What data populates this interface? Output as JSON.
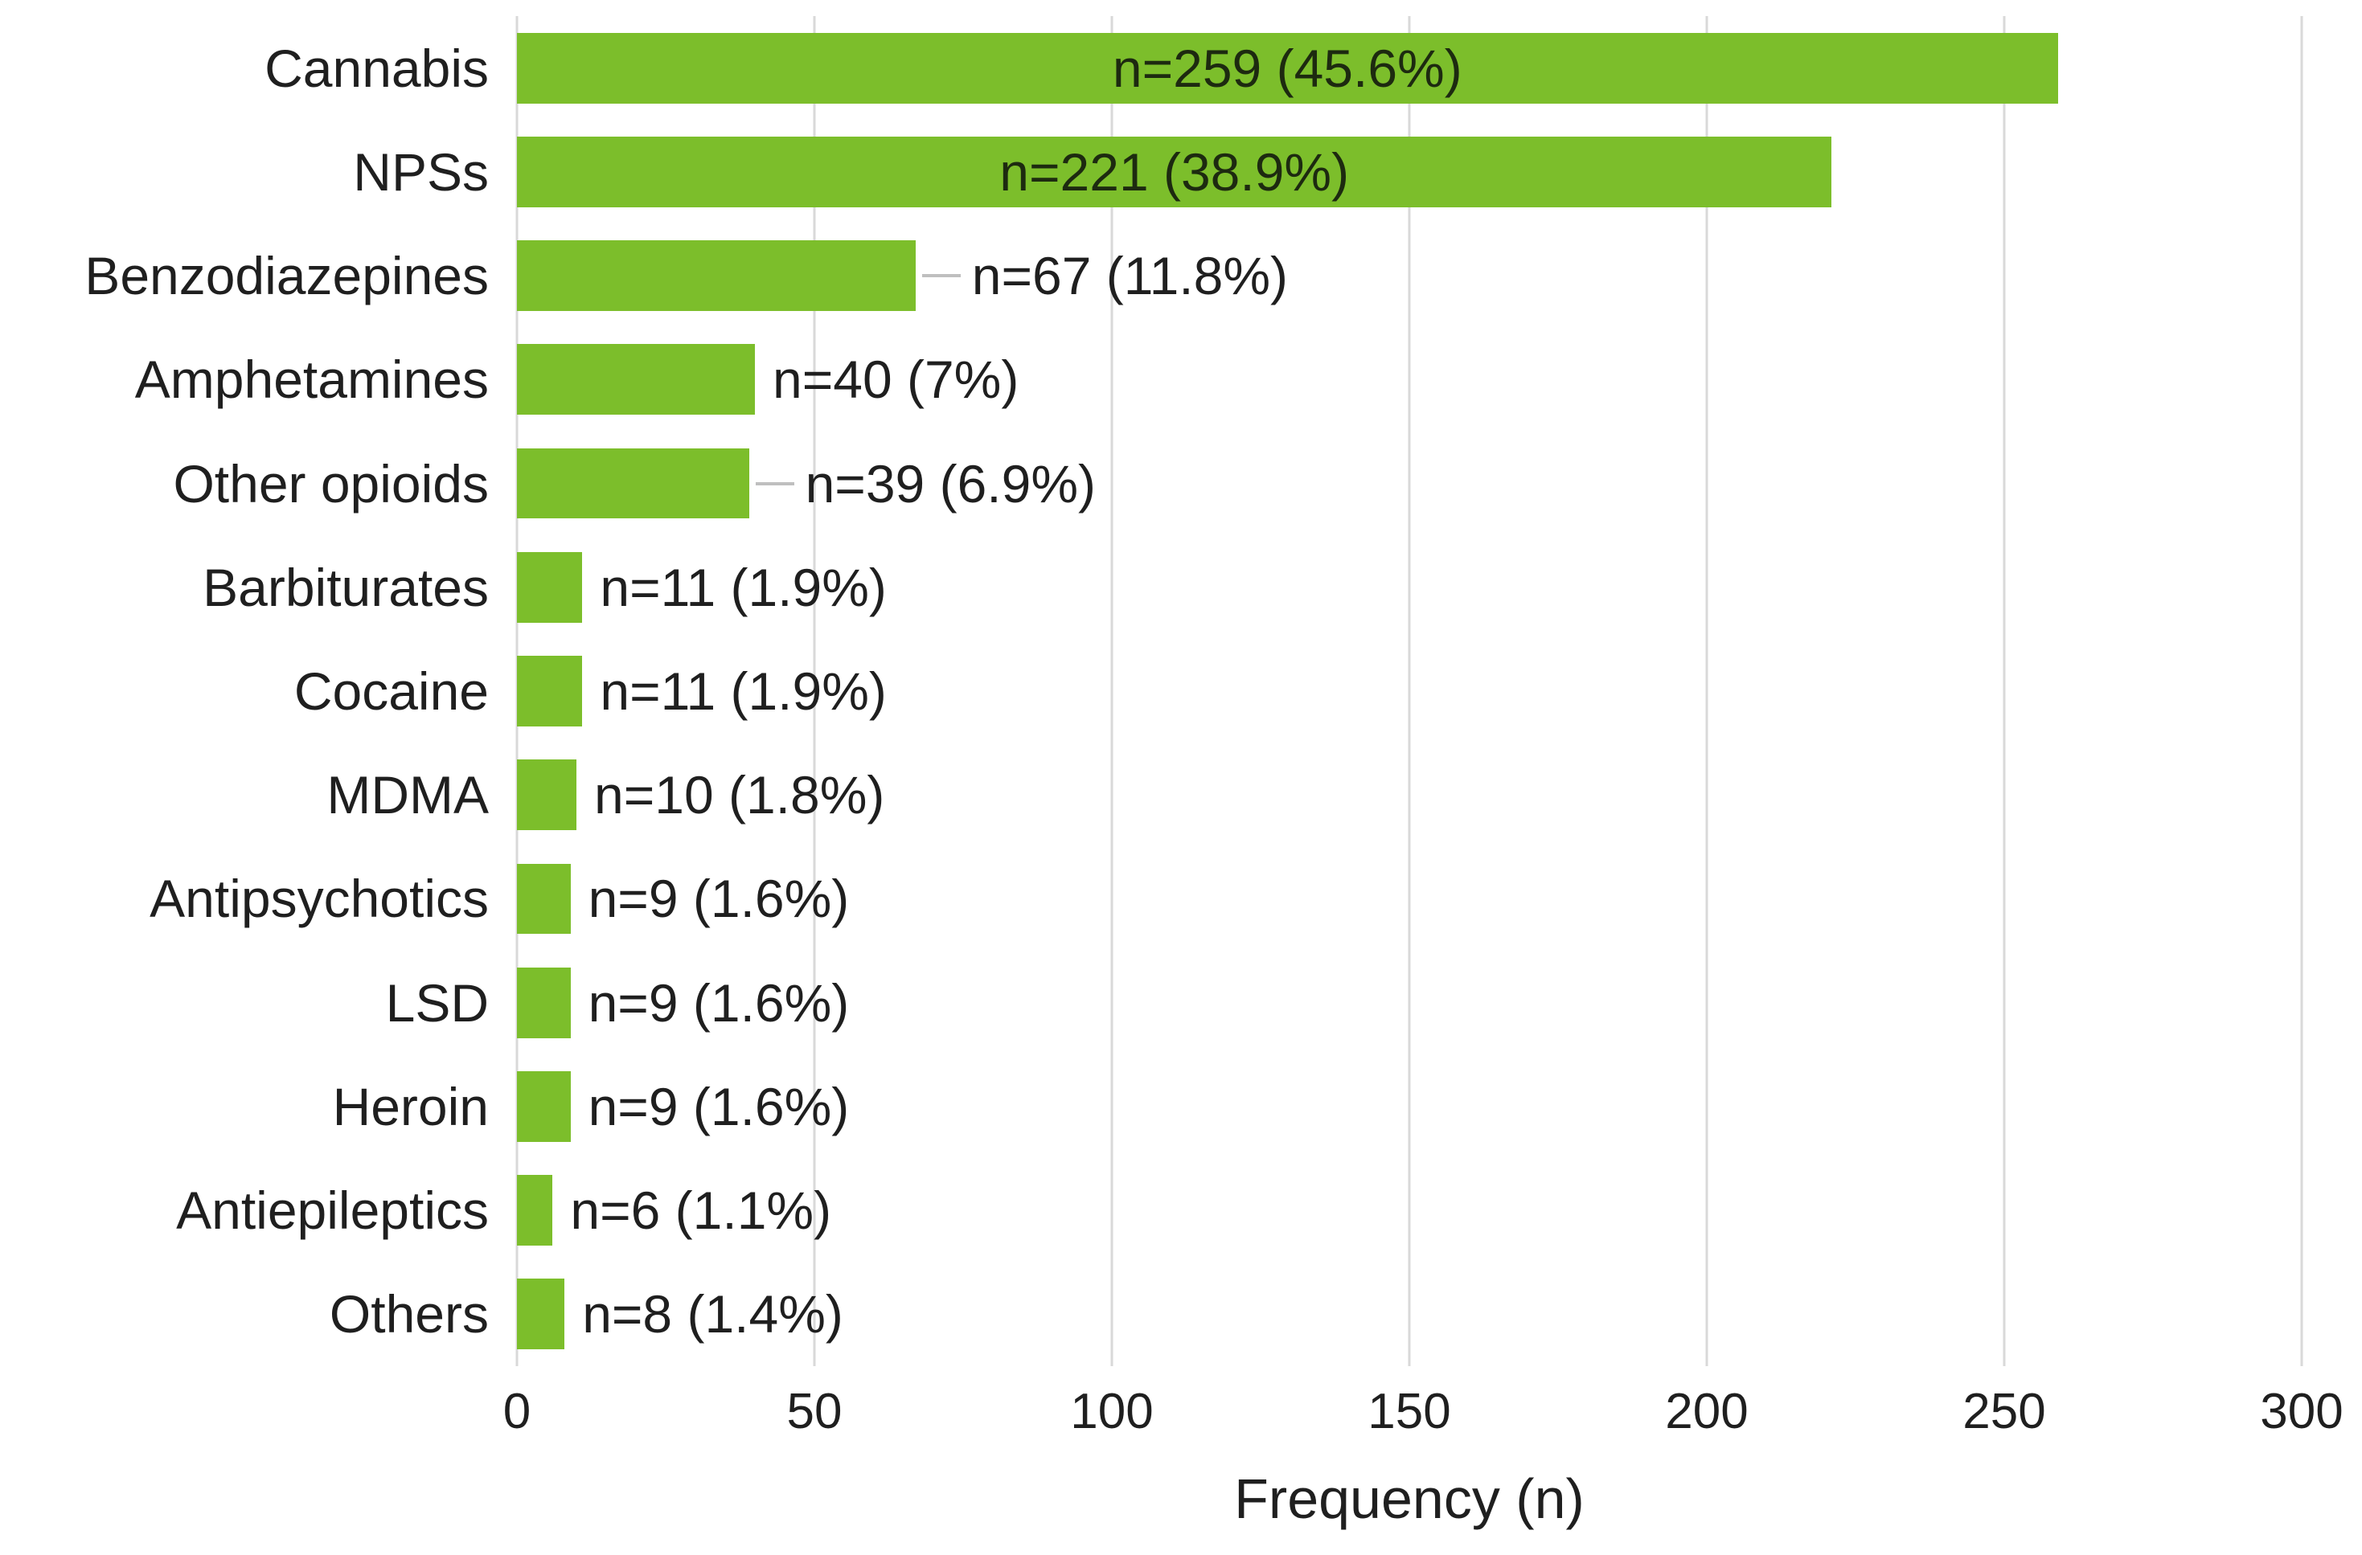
{
  "chart_data": {
    "type": "bar",
    "orientation": "horizontal",
    "title": "",
    "xlabel": "Frequency (n)",
    "ylabel": "",
    "xlim": [
      0,
      300
    ],
    "xticks": [
      "0",
      "50",
      "100",
      "150",
      "200",
      "250",
      "300"
    ],
    "xtick_values": [
      0,
      50,
      100,
      150,
      200,
      250,
      300
    ],
    "grid": "vertical-only",
    "legend": "none",
    "bar_color": "#7cbe2b",
    "gridline_color": "#d9d9d9",
    "leader_line_color": "#bfbfbf",
    "text_color": "#1f1f1f",
    "categories": [
      "Cannabis",
      "NPSs",
      "Benzodiazepines",
      "Amphetamines",
      "Other opioids",
      "Barbiturates",
      "Cocaine",
      "MDMA",
      "Antipsychotics",
      "LSD",
      "Heroin",
      "Antiepileptics",
      "Others"
    ],
    "values": [
      259,
      221,
      67,
      40,
      39,
      11,
      11,
      10,
      9,
      9,
      9,
      6,
      8
    ],
    "rows": [
      {
        "category": "Cannabis",
        "value": 259,
        "label": "n=259 (45.6%)",
        "label_position": "inside",
        "leader": false
      },
      {
        "category": "NPSs",
        "value": 221,
        "label": "n=221 (38.9%)",
        "label_position": "inside",
        "leader": false
      },
      {
        "category": "Benzodiazepines",
        "value": 67,
        "label": "n=67 (11.8%)",
        "label_position": "outside",
        "leader": true
      },
      {
        "category": "Amphetamines",
        "value": 40,
        "label": "n=40 (7%)",
        "label_position": "outside",
        "leader": false
      },
      {
        "category": "Other opioids",
        "value": 39,
        "label": "n=39 (6.9%)",
        "label_position": "outside",
        "leader": true
      },
      {
        "category": "Barbiturates",
        "value": 11,
        "label": "n=11 (1.9%)",
        "label_position": "outside",
        "leader": false
      },
      {
        "category": "Cocaine",
        "value": 11,
        "label": "n=11 (1.9%)",
        "label_position": "outside",
        "leader": false
      },
      {
        "category": "MDMA",
        "value": 10,
        "label": "n=10 (1.8%)",
        "label_position": "outside",
        "leader": false
      },
      {
        "category": "Antipsychotics",
        "value": 9,
        "label": "n=9 (1.6%)",
        "label_position": "outside",
        "leader": false
      },
      {
        "category": "LSD",
        "value": 9,
        "label": "n=9 (1.6%)",
        "label_position": "outside",
        "leader": false
      },
      {
        "category": "Heroin",
        "value": 9,
        "label": "n=9 (1.6%)",
        "label_position": "outside",
        "leader": false
      },
      {
        "category": "Antiepileptics",
        "value": 6,
        "label": "n=6 (1.1%)",
        "label_position": "outside",
        "leader": false
      },
      {
        "category": "Others",
        "value": 8,
        "label": "n=8 (1.4%)",
        "label_position": "outside",
        "leader": false
      }
    ]
  }
}
